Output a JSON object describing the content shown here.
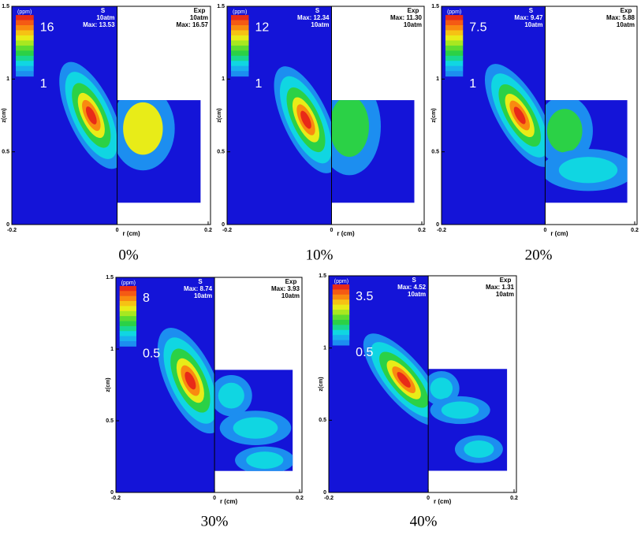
{
  "axes": {
    "zlabel": "z(cm)",
    "rlabel": "r (cm)",
    "unit": "(ppm)",
    "zticks": [
      0,
      0.5,
      1,
      1.5
    ],
    "rticks": [
      -0.2,
      0,
      0.2
    ]
  },
  "panels": [
    {
      "label": "0%",
      "sim": {
        "title": "S",
        "lines": [
          "10atm",
          "Max: 13.53"
        ]
      },
      "exp": {
        "title": "Exp",
        "lines": [
          "10atm",
          "Max: 16.57"
        ]
      },
      "colorbar": {
        "max": 16,
        "min": 1
      }
    },
    {
      "label": "10%",
      "sim": {
        "title": "S",
        "lines": [
          "Max: 12.34",
          "10atm"
        ]
      },
      "exp": {
        "title": "Exp",
        "lines": [
          "Max: 11.30",
          "10atm"
        ]
      },
      "colorbar": {
        "max": 12,
        "min": 1
      }
    },
    {
      "label": "20%",
      "sim": {
        "title": "S",
        "lines": [
          "Max: 9.47",
          "10atm"
        ]
      },
      "exp": {
        "title": "Exp",
        "lines": [
          "Max: 5.88",
          "10atm"
        ]
      },
      "colorbar": {
        "max": 7.5,
        "min": 1
      }
    },
    {
      "label": "30%",
      "sim": {
        "title": "S",
        "lines": [
          "Max: 8.74",
          "10atm"
        ]
      },
      "exp": {
        "title": "Exp",
        "lines": [
          "Max: 3.93",
          "10atm"
        ]
      },
      "colorbar": {
        "max": 8,
        "min": 0.5
      }
    },
    {
      "label": "40%",
      "sim": {
        "title": "S",
        "lines": [
          "Max: 4.52",
          "10atm"
        ]
      },
      "exp": {
        "title": "Exp",
        "lines": [
          "Max: 1.31",
          "10atm"
        ]
      },
      "colorbar": {
        "max": 3.5,
        "min": 0.5
      }
    }
  ]
}
